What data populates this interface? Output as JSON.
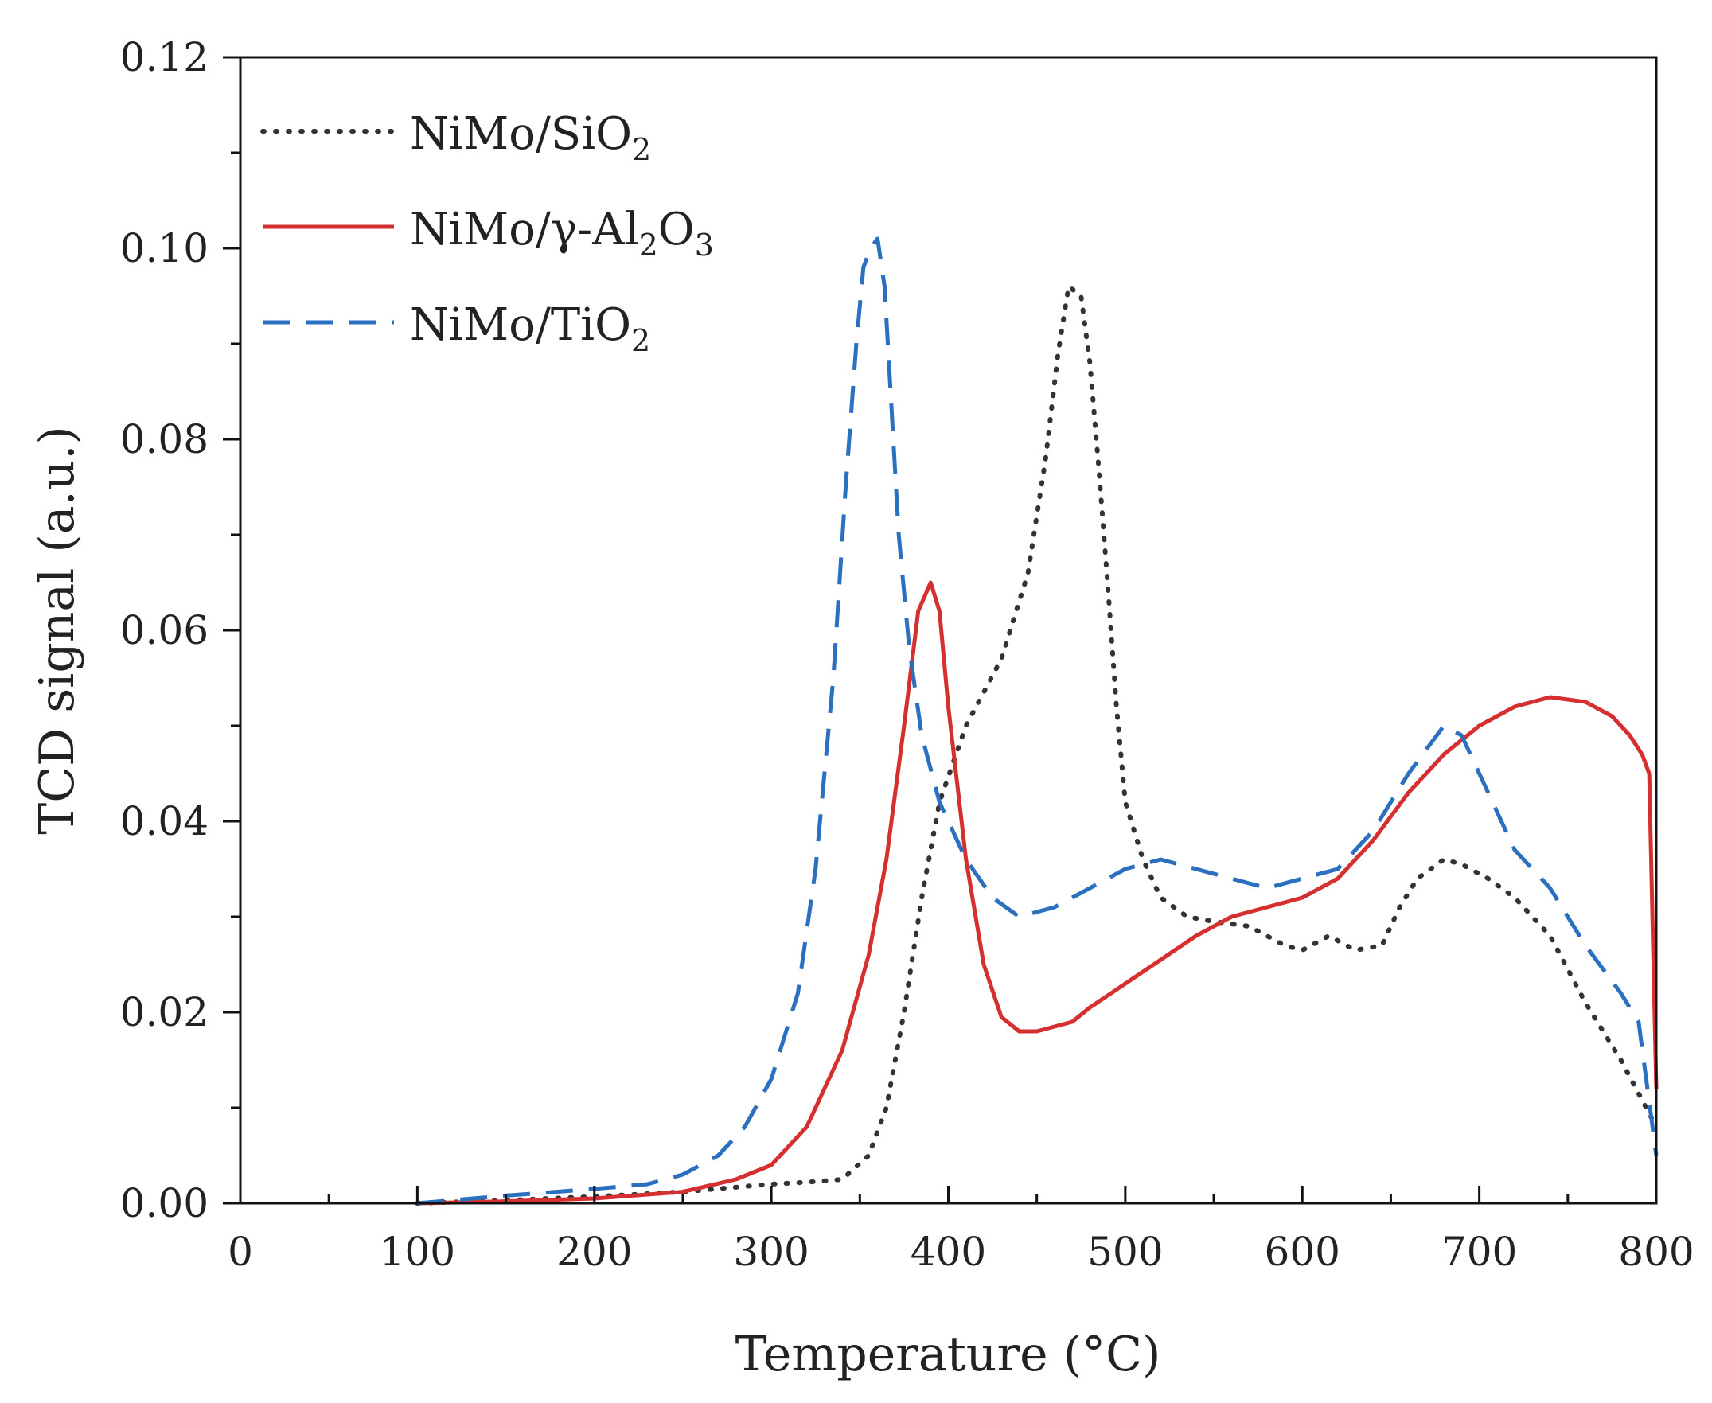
{
  "chart_data": {
    "type": "line",
    "title": "",
    "xlabel": "Temperature (°C)",
    "ylabel": "TCD signal (a.u.)",
    "xlim": [
      0,
      800
    ],
    "ylim": [
      0,
      0.12
    ],
    "x_ticks": [
      0,
      100,
      200,
      300,
      400,
      500,
      600,
      700,
      800
    ],
    "x_tick_labels": [
      "0",
      "100",
      "200",
      "300",
      "400",
      "500",
      "600",
      "700",
      "800"
    ],
    "y_ticks": [
      0,
      0.02,
      0.04,
      0.06,
      0.08,
      0.1,
      0.12
    ],
    "y_tick_labels": [
      "0.00",
      "0.02",
      "0.04",
      "0.06",
      "0.08",
      "0.10",
      "0.12"
    ],
    "grid": false,
    "legend_position": "top-left",
    "series": [
      {
        "name": "NiMo/SiO2",
        "legend_parts": [
          {
            "t": "NiMo/SiO",
            "sub": false
          },
          {
            "t": "2",
            "sub": true
          }
        ],
        "color": "#333333",
        "style": "dotted",
        "x": [
          100,
          150,
          200,
          250,
          300,
          320,
          340,
          355,
          365,
          375,
          385,
          395,
          410,
          430,
          445,
          455,
          462,
          468,
          475,
          480,
          485,
          490,
          495,
          500,
          510,
          520,
          535,
          550,
          570,
          590,
          600,
          615,
          630,
          645,
          655,
          665,
          680,
          690,
          705,
          720,
          740,
          760,
          780,
          800
        ],
        "y": [
          0.0,
          0.0003,
          0.0007,
          0.0012,
          0.002,
          0.0022,
          0.0025,
          0.005,
          0.01,
          0.02,
          0.032,
          0.042,
          0.05,
          0.057,
          0.066,
          0.078,
          0.089,
          0.096,
          0.095,
          0.088,
          0.077,
          0.065,
          0.052,
          0.042,
          0.036,
          0.032,
          0.03,
          0.0295,
          0.029,
          0.027,
          0.0265,
          0.028,
          0.0265,
          0.027,
          0.031,
          0.034,
          0.036,
          0.0355,
          0.034,
          0.032,
          0.028,
          0.021,
          0.015,
          0.008
        ]
      },
      {
        "name": "NiMo/γ-Al2O3",
        "legend_parts": [
          {
            "t": "NiMo/γ-Al",
            "sub": false
          },
          {
            "t": "2",
            "sub": true
          },
          {
            "t": "O",
            "sub": false
          },
          {
            "t": "3",
            "sub": true
          }
        ],
        "color": "#d62f2f",
        "style": "solid",
        "x": [
          100,
          150,
          200,
          250,
          280,
          300,
          320,
          340,
          355,
          365,
          375,
          383,
          390,
          395,
          400,
          410,
          420,
          430,
          440,
          450,
          460,
          470,
          480,
          500,
          520,
          540,
          560,
          580,
          600,
          620,
          640,
          660,
          680,
          700,
          720,
          740,
          760,
          775,
          785,
          792,
          796,
          800
        ],
        "y": [
          0.0,
          0.0002,
          0.0005,
          0.0012,
          0.0025,
          0.004,
          0.008,
          0.016,
          0.026,
          0.036,
          0.05,
          0.062,
          0.065,
          0.062,
          0.052,
          0.036,
          0.025,
          0.0195,
          0.018,
          0.018,
          0.0185,
          0.019,
          0.0205,
          0.023,
          0.0255,
          0.028,
          0.03,
          0.031,
          0.032,
          0.034,
          0.038,
          0.043,
          0.047,
          0.05,
          0.052,
          0.053,
          0.0525,
          0.051,
          0.049,
          0.047,
          0.045,
          0.012
        ]
      },
      {
        "name": "NiMo/TiO2",
        "legend_parts": [
          {
            "t": "NiMo/TiO",
            "sub": false
          },
          {
            "t": "2",
            "sub": true
          }
        ],
        "color": "#2b6fc0",
        "style": "dashed",
        "x": [
          100,
          150,
          200,
          230,
          250,
          270,
          285,
          300,
          315,
          325,
          335,
          342,
          348,
          352,
          356,
          360,
          364,
          368,
          372,
          378,
          385,
          395,
          410,
          425,
          440,
          460,
          480,
          500,
          520,
          540,
          560,
          580,
          600,
          620,
          640,
          660,
          680,
          690,
          700,
          720,
          740,
          760,
          780,
          790,
          800
        ],
        "y": [
          0.0,
          0.0008,
          0.0015,
          0.002,
          0.003,
          0.005,
          0.008,
          0.013,
          0.022,
          0.035,
          0.055,
          0.075,
          0.09,
          0.098,
          0.1,
          0.101,
          0.096,
          0.083,
          0.07,
          0.058,
          0.049,
          0.042,
          0.036,
          0.032,
          0.03,
          0.031,
          0.033,
          0.035,
          0.036,
          0.035,
          0.034,
          0.033,
          0.034,
          0.035,
          0.039,
          0.045,
          0.05,
          0.049,
          0.045,
          0.037,
          0.033,
          0.027,
          0.022,
          0.019,
          0.005
        ]
      }
    ]
  }
}
